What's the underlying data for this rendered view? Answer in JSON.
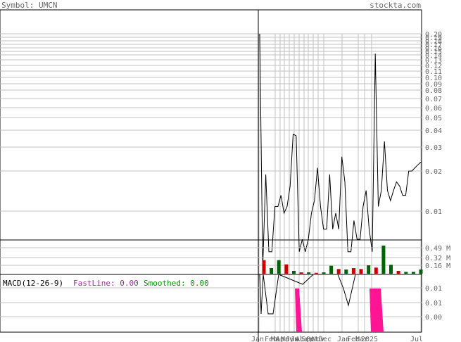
{
  "header": {
    "symbol_label": "Symbol: UMCN",
    "site_label": "stockta.com"
  },
  "macd": {
    "title": "MACD(12-26-9)",
    "fastline_label": "FastLine: 0.00",
    "smoothed_label": "Smoothed: 0.00"
  },
  "colors": {
    "price_line": "#000000",
    "grid": "#c0c0c0",
    "up_volume": "#006400",
    "down_volume": "#cc0000",
    "macd_bar": "#ff1493",
    "fastline_text": "#993399",
    "smoothed_text": "#009900",
    "axis_text": "#666666"
  },
  "chart_data": [
    {
      "type": "line",
      "name": "price",
      "scale": "log",
      "y_ticks": [
        "0.20",
        "0.19",
        "0.18",
        "0.17",
        "0.16",
        "0.15",
        "0.14",
        "0.13",
        "0.12",
        "0.11",
        "0.10",
        "0.09",
        "0.08",
        "0.07",
        "0.06",
        "0.05",
        "0.04",
        "0.03",
        "0.02",
        "0.01"
      ],
      "ylim": [
        0.005,
        0.2
      ],
      "x_ticks": [
        "Jan",
        "Feb",
        "Mar",
        "Apr",
        "May",
        "Jun",
        "Jul",
        "Aug",
        "Sep",
        "Oct",
        "Nov",
        "Dec",
        "Jan",
        "Feb",
        "Mar",
        "2025",
        "Jul"
      ],
      "values": [
        0.2,
        0.003,
        0.016,
        0.004,
        0.004,
        0.009,
        0.009,
        0.011,
        0.008,
        0.009,
        0.013,
        0.033,
        0.032,
        0.004,
        0.005,
        0.004,
        0.005,
        0.008,
        0.01,
        0.018,
        0.009,
        0.006,
        0.006,
        0.016,
        0.006,
        0.008,
        0.006,
        0.022,
        0.014,
        0.004,
        0.004,
        0.007,
        0.005,
        0.005,
        0.009,
        0.012,
        0.006,
        0.004,
        0.14,
        0.009,
        0.012,
        0.029,
        0.012,
        0.01,
        0.012,
        0.014,
        0.013,
        0.011,
        0.011,
        0.017,
        0.017,
        0.018,
        0.019,
        0.02
      ]
    },
    {
      "type": "bar",
      "name": "volume",
      "y_ticks": [
        "0.49 M",
        "0.32 M",
        "0.16 M"
      ],
      "ylim": [
        0,
        0.6
      ],
      "bars": [
        {
          "v": 0.29,
          "up": false
        },
        {
          "v": 0.12,
          "up": true
        },
        {
          "v": 0.29,
          "up": true
        },
        {
          "v": 0.2,
          "up": false
        },
        {
          "v": 0.06,
          "up": true
        },
        {
          "v": 0.03,
          "up": false
        },
        {
          "v": 0.03,
          "up": true
        },
        {
          "v": 0.02,
          "up": false
        },
        {
          "v": 0.03,
          "up": true
        },
        {
          "v": 0.17,
          "up": true
        },
        {
          "v": 0.1,
          "up": false
        },
        {
          "v": 0.09,
          "up": true
        },
        {
          "v": 0.12,
          "up": false
        },
        {
          "v": 0.1,
          "up": false
        },
        {
          "v": 0.18,
          "up": true
        },
        {
          "v": 0.13,
          "up": false
        },
        {
          "v": 0.6,
          "up": true
        },
        {
          "v": 0.19,
          "up": true
        },
        {
          "v": 0.06,
          "up": false
        },
        {
          "v": 0.04,
          "up": true
        },
        {
          "v": 0.04,
          "up": true
        },
        {
          "v": 0.09,
          "up": true
        }
      ]
    },
    {
      "type": "bar",
      "name": "macd",
      "y_ticks": [
        "0.01",
        "0.01",
        "0.00"
      ],
      "bars": [
        {
          "from": "May",
          "to": "Jun",
          "depth": 1.0
        },
        {
          "from": "Mar",
          "to": "2025",
          "depth": 1.0
        }
      ]
    }
  ]
}
